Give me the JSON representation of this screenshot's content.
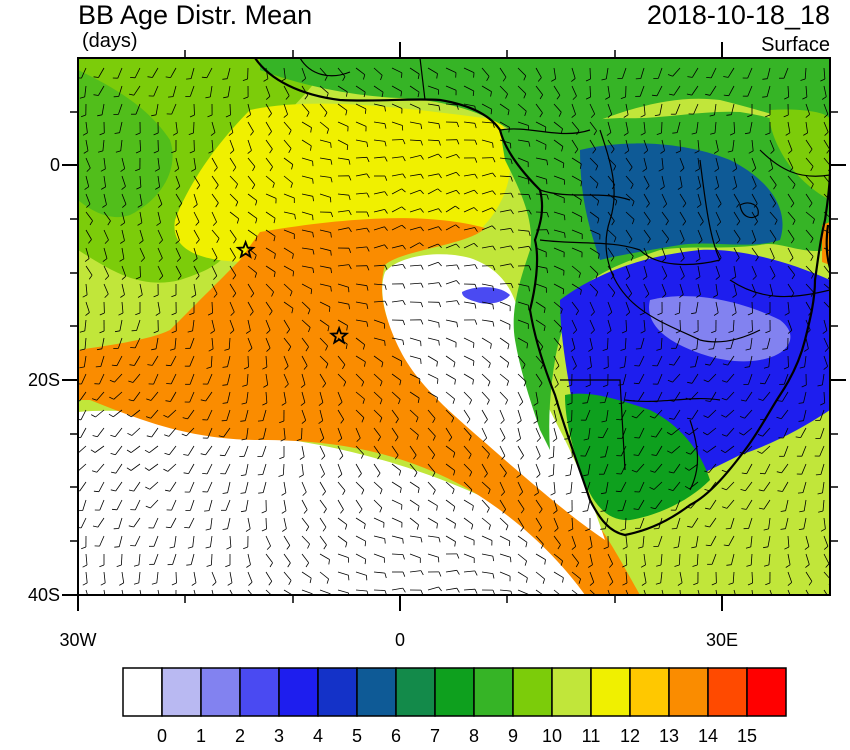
{
  "header": {
    "title": "BB Age Distr. Mean",
    "units": "(days)",
    "datetime": "2018-10-18_18",
    "level": "Surface"
  },
  "axes": {
    "y_ticks": [
      "0",
      "20S",
      "40S"
    ],
    "x_ticks": [
      "30W",
      "0",
      "30E"
    ]
  },
  "colorbar": {
    "labels": [
      "0",
      "1",
      "2",
      "3",
      "4",
      "5",
      "6",
      "7",
      "8",
      "9",
      "10",
      "11",
      "12",
      "13",
      "14",
      "15"
    ],
    "colors": [
      "#ffffff",
      "#b9b9f2",
      "#8282f0",
      "#4a4af2",
      "#1e1eee",
      "#1432c8",
      "#0e5a96",
      "#138a4a",
      "#0ea01e",
      "#36b426",
      "#7ccc0a",
      "#c1e63a",
      "#f0f000",
      "#ffc800",
      "#fa8c00",
      "#ff4a00",
      "#ff0000"
    ]
  },
  "map": {
    "lon_range": [
      -30,
      40
    ],
    "lat_range": [
      -40,
      10
    ],
    "stars": [
      {
        "name": "star-ascension",
        "lon": -14.4,
        "lat": -7.9
      },
      {
        "name": "star-st-helena",
        "lon": -5.7,
        "lat": -15.9
      }
    ],
    "colors": {
      "ocean_far_west": "#7ccc0a",
      "aged_plume": "#c1e63a",
      "plume_core": "#fa8c00",
      "fresh_ocean": "#ffffff",
      "continent_young": "#1e1eee",
      "continent_mid": "#36b426",
      "boundary": "#000000"
    }
  }
}
